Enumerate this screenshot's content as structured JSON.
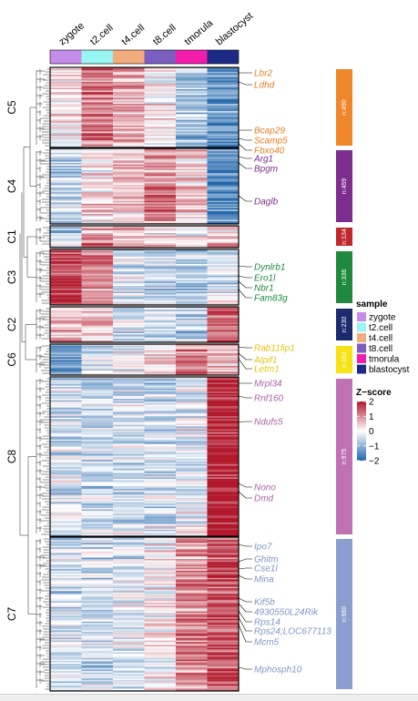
{
  "chart_data": {
    "type": "heatmap",
    "columns": [
      "zygote",
      "t2.cell",
      "t4.cell",
      "t8.cell",
      "tmorula",
      "blastocyst"
    ],
    "column_colors": [
      "#c58be8",
      "#97f5f2",
      "#f3ad7d",
      "#7a5ec2",
      "#f21dab",
      "#1c2a86"
    ],
    "clusters": [
      {
        "name": "C5",
        "count_label": "n:490",
        "n": 490,
        "color": "#f08529",
        "label_color": "#e67e22",
        "profile": [
          0.2,
          1.2,
          0.7,
          0.1,
          -0.8,
          -1.4
        ],
        "genes": [
          "Lbr2",
          "Ldhd",
          "Bcap29",
          "Scamp5",
          "Fbxo40"
        ]
      },
      {
        "name": "C4",
        "count_label": "n:459",
        "n": 459,
        "color": "#7d2d8d",
        "label_color": "#7d2d8d",
        "profile": [
          -0.6,
          0.3,
          0.5,
          1.0,
          0.4,
          -1.5
        ],
        "genes": [
          "Arg1",
          "Bpgm",
          "Daglb"
        ]
      },
      {
        "name": "C1",
        "count_label": "n:134",
        "n": 134,
        "color": "#c1272d",
        "label_color": "#c1272d",
        "profile": [
          -0.5,
          1.0,
          0.7,
          0.5,
          0.1,
          0.6
        ],
        "genes": []
      },
      {
        "name": "C3",
        "count_label": "n:336",
        "n": 336,
        "color": "#1f8a3e",
        "label_color": "#1f8a3e",
        "profile": [
          1.6,
          0.9,
          -0.3,
          -0.5,
          -0.7,
          -0.4
        ],
        "genes": [
          "Dynlrb1",
          "Ero1l",
          "Nbr1",
          "Fam83g"
        ]
      },
      {
        "name": "C2",
        "count_label": "n:230",
        "n": 230,
        "color": "#1c2a6e",
        "label_color": "#1c2a6e",
        "profile": [
          0.8,
          0.6,
          -0.3,
          -0.5,
          -0.6,
          1.3
        ],
        "genes": []
      },
      {
        "name": "C6",
        "count_label": "n:163",
        "n": 163,
        "color": "#f5e313",
        "label_color": "#e6c40f",
        "profile": [
          -1.4,
          -0.3,
          -0.2,
          0.2,
          1.1,
          0.5
        ],
        "genes": [
          "Rab11fip1",
          "Atpif1",
          "Letm1"
        ]
      },
      {
        "name": "C8",
        "count_label": "n:975",
        "n": 975,
        "color": "#c071b3",
        "label_color": "#b05fa8",
        "profile": [
          -0.4,
          -0.5,
          -0.4,
          -0.4,
          -0.2,
          2.0
        ],
        "genes": [
          "Mrpl34",
          "Rnf160",
          "Ndufs5",
          "Nono",
          "Dmd"
        ]
      },
      {
        "name": "C7",
        "count_label": "n:960",
        "n": 960,
        "color": "#8a9fcf",
        "label_color": "#7f96c8",
        "profile": [
          -0.5,
          -0.5,
          -0.3,
          0.0,
          0.9,
          1.5
        ],
        "genes": [
          "Ipo7",
          "Ghitm",
          "Cse1l",
          "Mina",
          "Kif5b",
          "4930550L24Rik",
          "Rps14",
          "Rps24;LOC677113",
          "Mcm5",
          "Mphosph10"
        ]
      }
    ],
    "legend_sample": {
      "title": "sample",
      "items": [
        "zygote",
        "t2.cell",
        "t4.cell",
        "t8.cell",
        "tmorula",
        "blastocyst"
      ]
    },
    "legend_zscore": {
      "title": "Z−score",
      "ticks": [
        2,
        1,
        0,
        -1,
        -2
      ],
      "tick_labels": [
        "2",
        "1",
        "0",
        "−1",
        "−2"
      ],
      "range": [
        -2,
        2
      ],
      "colors": [
        "#2166ac",
        "#ffffff",
        "#b2182b"
      ]
    }
  }
}
